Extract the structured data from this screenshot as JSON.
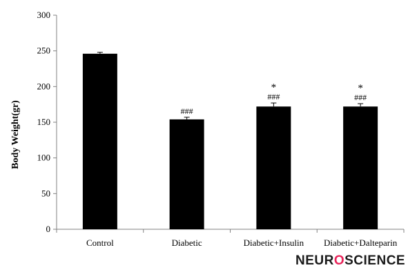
{
  "chart_data": {
    "type": "bar",
    "categories": [
      "Control",
      "Diabetic",
      "Diabetic+Insulin",
      "Diabetic+Dalteparin"
    ],
    "values": [
      246,
      154,
      172,
      172
    ],
    "errors": [
      2,
      3,
      5,
      4
    ],
    "annotations_hash": [
      "",
      "###",
      "###",
      "###"
    ],
    "annotations_star": [
      "",
      "",
      "*",
      "*"
    ],
    "ylabel": "Body Weight(gr)",
    "xlabel": "",
    "ylim": [
      0,
      300
    ],
    "yticks": [
      0,
      50,
      100,
      150,
      200,
      250,
      300
    ],
    "bar_color": "#000000",
    "grid": false
  },
  "logo": {
    "left": "NEUR",
    "o": "O",
    "right": "SCIENCE"
  }
}
